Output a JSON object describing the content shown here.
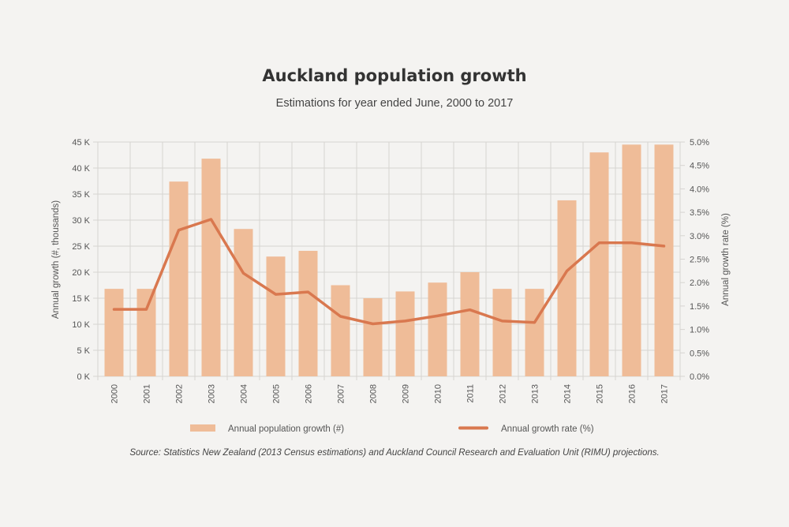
{
  "chart_data": {
    "type": "bar+line",
    "title": "Auckland population growth",
    "subtitle": "Estimations for year ended June, 2000 to 2017",
    "categories": [
      "2000",
      "2001",
      "2002",
      "2003",
      "2004",
      "2005",
      "2006",
      "2007",
      "2008",
      "2009",
      "2010",
      "2011",
      "2012",
      "2013",
      "2014",
      "2015",
      "2016",
      "2017"
    ],
    "series": [
      {
        "name": "Annual population growth (#)",
        "kind": "bar",
        "axis": "left",
        "color": "#efbc98",
        "values": [
          16800,
          16800,
          37400,
          41800,
          28300,
          23000,
          24100,
          17500,
          15000,
          16300,
          18000,
          20000,
          16800,
          16800,
          33800,
          43000,
          44500,
          44500
        ]
      },
      {
        "name": "Annual growth rate (%)",
        "kind": "line",
        "axis": "right",
        "color": "#d9784f",
        "values": [
          1.43,
          1.43,
          3.12,
          3.35,
          2.2,
          1.75,
          1.8,
          1.28,
          1.12,
          1.18,
          1.29,
          1.42,
          1.18,
          1.15,
          2.25,
          2.85,
          2.85,
          2.78
        ]
      }
    ],
    "ylabel": "Annual growth (#, thousands)",
    "ylabel_right": "Annual growth rate (%)",
    "ylim": [
      0,
      45000
    ],
    "ylim_right": [
      0,
      5.0
    ],
    "yticks": [
      "0 K",
      "5 K",
      "10 K",
      "15 K",
      "20 K",
      "25 K",
      "30 K",
      "35 K",
      "40 K",
      "45 K"
    ],
    "yticks_right": [
      "0.0%",
      "0.5%",
      "1.0%",
      "1.5%",
      "2.0%",
      "2.5%",
      "3.0%",
      "3.5%",
      "4.0%",
      "4.5%",
      "5.0%"
    ],
    "grid": true,
    "legend_position": "bottom",
    "source": "Source: Statistics New Zealand (2013 Census estimations) and Auckland Council Research and Evaluation Unit (RIMU) projections."
  }
}
